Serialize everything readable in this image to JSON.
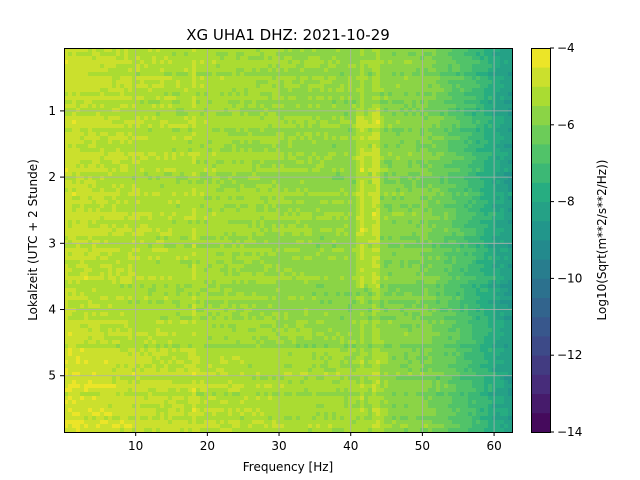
{
  "chart_data": {
    "type": "heatmap",
    "title": "XG UHA1  DHZ: 2021-10-29",
    "xlabel": "Frequency [Hz]",
    "ylabel": "Lokalzeit (UTC + 2 Stunde)",
    "colorbar_label": "Log10(Sqrt(m**2/s**2/Hz))",
    "xlim": [
      0,
      62.5
    ],
    "ylim": [
      5.85,
      0.05
    ],
    "y_inverted": true,
    "xticks": [
      10,
      20,
      30,
      40,
      50,
      60
    ],
    "yticks": [
      1,
      2,
      3,
      4,
      5
    ],
    "colorbar_range": [
      -14,
      -4
    ],
    "colorbar_ticks": [
      -4,
      -6,
      -8,
      -10,
      -12,
      -14
    ],
    "colormap": "viridis",
    "grid": true,
    "features": {
      "background_level_low_freq": -5.2,
      "background_level_mid_freq": -5.9,
      "background_level_high_freq": -8.5,
      "vertical_lines_hz": [
        18,
        41.5,
        43.5
      ],
      "strong_band_hz": [
        40.5,
        44
      ],
      "strong_band_hours": [
        0.95,
        3.7
      ]
    }
  }
}
